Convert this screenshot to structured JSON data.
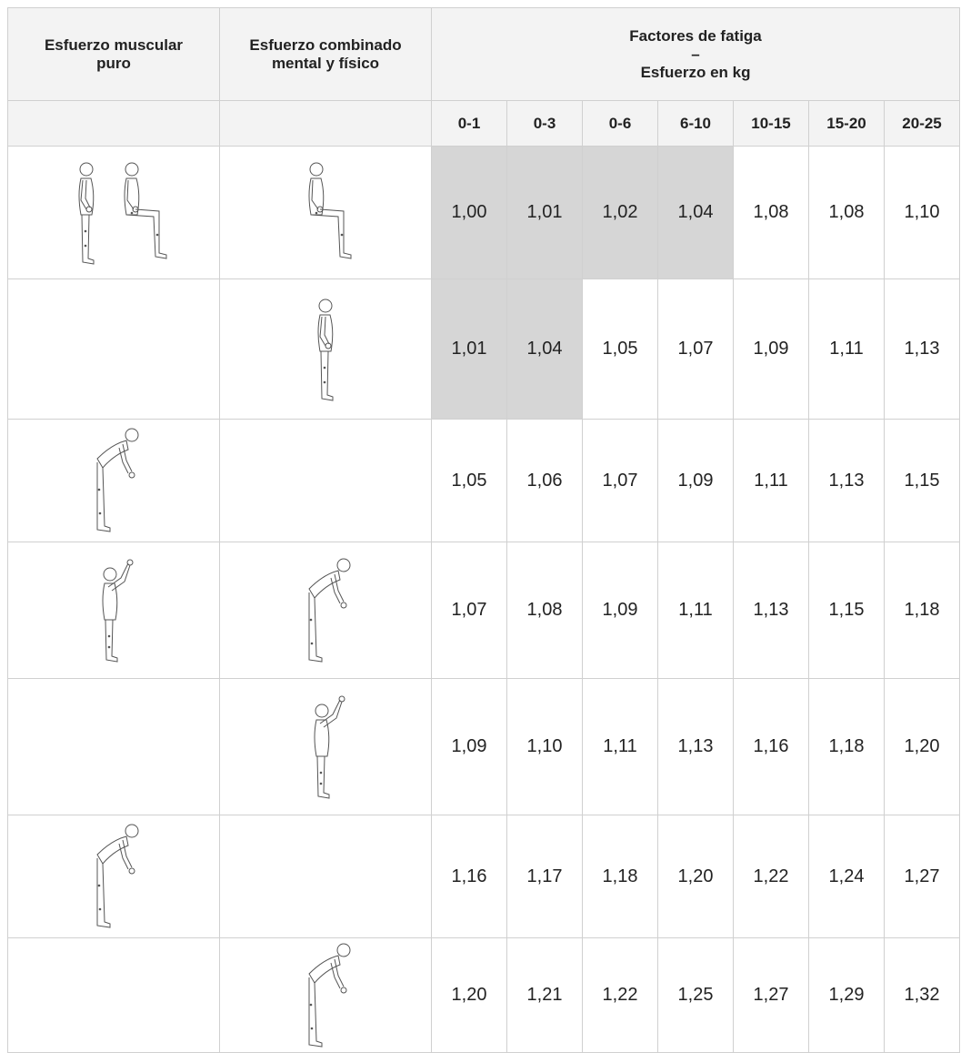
{
  "header": {
    "col1": "Esfuerzo muscular puro",
    "col2": "Esfuerzo combinado mental y físico",
    "group": [
      "Factores de fatiga",
      "–",
      "Esfuerzo en kg"
    ],
    "ranges": [
      "0-1",
      "0-3",
      "0-6",
      "6-10",
      "10-15",
      "15-20",
      "20-25"
    ]
  },
  "table": {
    "rows": [
      [
        "1,00",
        "1,01",
        "1,02",
        "1,04",
        "1,08",
        "1,08",
        "1,10"
      ],
      [
        "1,01",
        "1,04",
        "1,05",
        "1,07",
        "1,09",
        "1,11",
        "1,13"
      ],
      [
        "1,05",
        "1,06",
        "1,07",
        "1,09",
        "1,11",
        "1,13",
        "1,15"
      ],
      [
        "1,07",
        "1,08",
        "1,09",
        "1,11",
        "1,13",
        "1,15",
        "1,18"
      ],
      [
        "1,09",
        "1,10",
        "1,11",
        "1,13",
        "1,16",
        "1,18",
        "1,20"
      ],
      [
        "1,16",
        "1,17",
        "1,18",
        "1,20",
        "1,22",
        "1,24",
        "1,27"
      ],
      [
        "1,20",
        "1,21",
        "1,22",
        "1,25",
        "1,27",
        "1,29",
        "1,32"
      ]
    ]
  }
}
